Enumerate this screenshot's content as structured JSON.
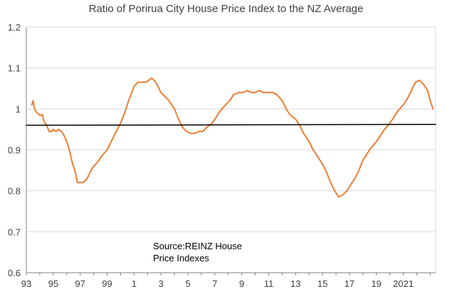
{
  "chart_data": {
    "type": "line",
    "title": "Ratio of Porirua City House Price Index to the NZ Average",
    "annotation": [
      "Source:REINZ House",
      "Price Indexes"
    ],
    "xlabel": "",
    "ylabel": "",
    "xlim": [
      1993.0,
      2023.4
    ],
    "ylim": [
      0.6,
      1.2
    ],
    "y_ticks": [
      0.6,
      0.7,
      0.8,
      0.9,
      1.0,
      1.1,
      1.2
    ],
    "y_tick_labels": [
      "0.6",
      "0.7",
      "0.8",
      "0.9",
      "1",
      "1.1",
      "1.2"
    ],
    "x_ticks": [
      1993,
      1995,
      1997,
      1999,
      2001,
      2003,
      2005,
      2007,
      2009,
      2011,
      2013,
      2015,
      2017,
      2019,
      2021
    ],
    "x_tick_labels": [
      "93",
      "95",
      "97",
      "99",
      "1",
      "3",
      "5",
      "7",
      "9",
      "11",
      "13",
      "15",
      "17",
      "19",
      "2021"
    ],
    "grid": true,
    "colors": {
      "ratio": "#ed7d31",
      "average": "#000000",
      "grid": "#d9d9d9",
      "axis": "#808080"
    },
    "series": [
      {
        "key": "ratio",
        "x": [
          1993.4,
          1993.5,
          1993.6,
          1993.8,
          1994.0,
          1994.2,
          1994.3,
          1994.5,
          1994.7,
          1994.9,
          1995.0,
          1995.2,
          1995.4,
          1995.6,
          1995.8,
          1996.0,
          1996.2,
          1996.4,
          1996.6,
          1996.8,
          1997.0,
          1997.2,
          1997.4,
          1997.6,
          1997.8,
          1998.0,
          1998.3,
          1998.6,
          1999.0,
          1999.3,
          1999.6,
          2000.0,
          2000.3,
          2000.6,
          2001.0,
          2001.3,
          2001.6,
          2001.9,
          2002.1,
          2002.3,
          2002.5,
          2002.7,
          2003.0,
          2003.3,
          2003.6,
          2004.0,
          2004.3,
          2004.6,
          2004.9,
          2005.2,
          2005.5,
          2005.8,
          2006.1,
          2006.4,
          2006.8,
          2007.1,
          2007.4,
          2007.8,
          2008.1,
          2008.4,
          2008.8,
          2009.1,
          2009.4,
          2009.7,
          2010.0,
          2010.3,
          2010.6,
          2011.0,
          2011.3,
          2011.6,
          2012.0,
          2012.3,
          2012.6,
          2013.0,
          2013.3,
          2013.6,
          2014.0,
          2014.3,
          2014.6,
          2015.0,
          2015.3,
          2015.6,
          2015.9,
          2016.2,
          2016.5,
          2016.8,
          2017.1,
          2017.4,
          2017.7,
          2018.0,
          2018.3,
          2018.6,
          2019.0,
          2019.3,
          2019.6,
          2020.0,
          2020.3,
          2020.6,
          2021.0,
          2021.3,
          2021.6,
          2021.9,
          2022.2,
          2022.5,
          2022.8,
          2023.0,
          2023.2
        ],
        "values": [
          1.01,
          1.02,
          1.0,
          0.99,
          0.985,
          0.985,
          0.97,
          0.96,
          0.945,
          0.945,
          0.95,
          0.945,
          0.95,
          0.945,
          0.935,
          0.92,
          0.9,
          0.87,
          0.85,
          0.82,
          0.82,
          0.82,
          0.825,
          0.835,
          0.85,
          0.86,
          0.87,
          0.885,
          0.9,
          0.92,
          0.94,
          0.965,
          0.99,
          1.02,
          1.055,
          1.065,
          1.065,
          1.065,
          1.07,
          1.075,
          1.07,
          1.06,
          1.04,
          1.03,
          1.02,
          1.0,
          0.975,
          0.955,
          0.945,
          0.94,
          0.94,
          0.945,
          0.945,
          0.955,
          0.965,
          0.98,
          0.995,
          1.01,
          1.02,
          1.035,
          1.04,
          1.04,
          1.045,
          1.04,
          1.04,
          1.045,
          1.04,
          1.04,
          1.04,
          1.035,
          1.02,
          1.0,
          0.985,
          0.975,
          0.96,
          0.94,
          0.92,
          0.9,
          0.885,
          0.865,
          0.845,
          0.82,
          0.8,
          0.785,
          0.79,
          0.8,
          0.815,
          0.83,
          0.85,
          0.875,
          0.89,
          0.905,
          0.92,
          0.935,
          0.95,
          0.965,
          0.98,
          0.995,
          1.01,
          1.025,
          1.045,
          1.065,
          1.07,
          1.06,
          1.045,
          1.02,
          1.0
        ]
      },
      {
        "key": "average",
        "x": [
          1993.0,
          2023.4
        ],
        "values": [
          0.96,
          0.962
        ]
      }
    ]
  }
}
